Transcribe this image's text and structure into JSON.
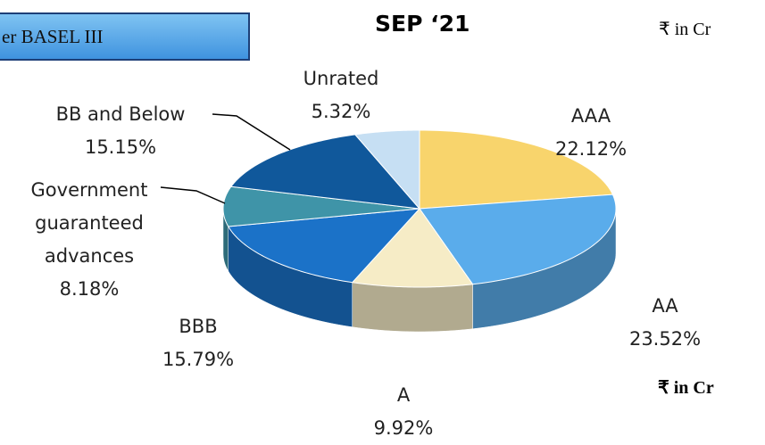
{
  "chart_data": {
    "type": "pie3d",
    "badge": "er BASEL III",
    "title": "SEP ‘21",
    "unit_top": "₹ in Cr",
    "unit_bottom": "₹ in Cr",
    "categories": [
      "AAA",
      "AA",
      "A",
      "BBB",
      "Government guaranteed advances",
      "BB and Below",
      "Unrated"
    ],
    "values": [
      22.12,
      23.52,
      9.92,
      15.79,
      8.18,
      15.15,
      5.32
    ],
    "value_labels": [
      "22.12%",
      "23.52%",
      "9.92%",
      "15.79%",
      "8.18%",
      "15.15%",
      "5.32%"
    ],
    "colors": [
      "#f8d46c",
      "#5aaceb",
      "#f6ecc6",
      "#1b72c8",
      "#3f94a8",
      "#10589b",
      "#c6dff3"
    ]
  }
}
